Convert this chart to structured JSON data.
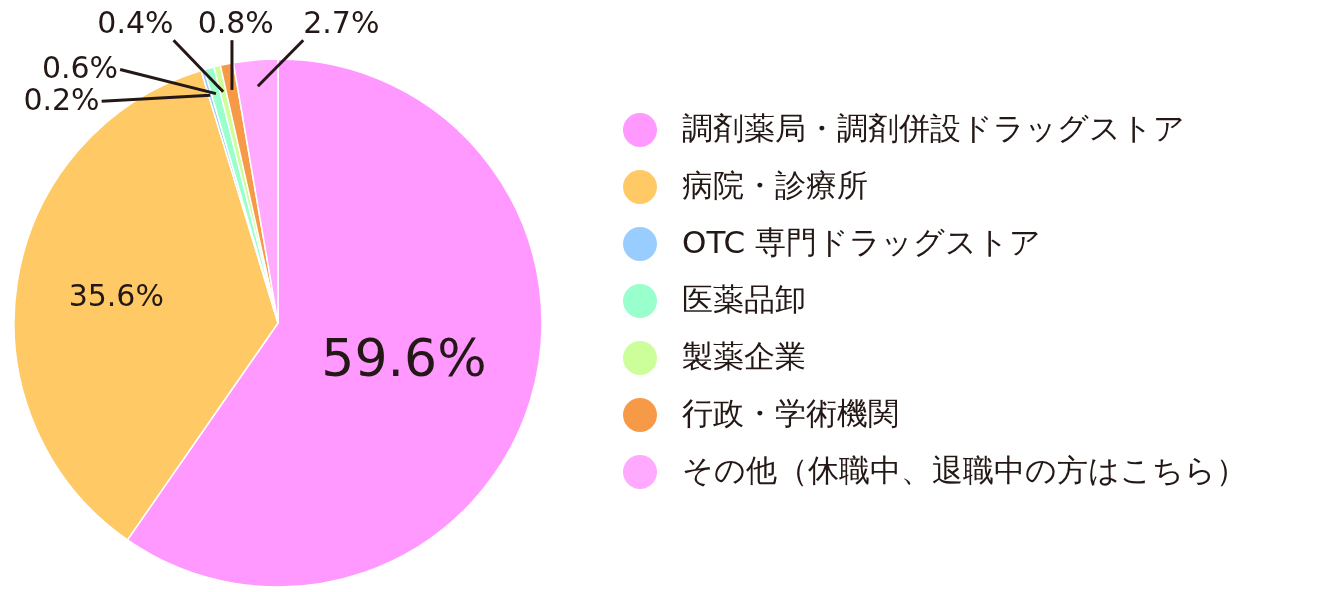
{
  "chart_data": {
    "type": "pie",
    "legend": "right",
    "value_labels": [
      "59.6%",
      "35.6%",
      "0.2%",
      "0.6%",
      "0.4%",
      "0.8%",
      "2.7%"
    ],
    "categories": [
      "調剤薬局・調剤併設ドラッグストア",
      "病院・診療所",
      "OTC 専門ドラッグストア",
      "医薬品卸",
      "製薬企業",
      "行政・学術機関",
      "その他（休職中、退職中の方はこちら）"
    ],
    "values": [
      59.6,
      35.6,
      0.2,
      0.6,
      0.4,
      0.8,
      2.7
    ],
    "colors": [
      "#ff99ff",
      "#ffc966",
      "#99ccff",
      "#99ffcc",
      "#ccff99",
      "#f79a48",
      "#ffaaff"
    ]
  }
}
